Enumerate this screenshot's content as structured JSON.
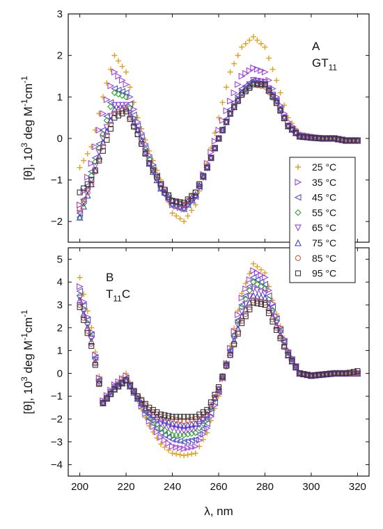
{
  "chart_data": [
    {
      "type": "scatter",
      "panel_label": "A",
      "panel_sublabel": {
        "base": "GT",
        "sub": "11"
      },
      "xlabel": "λ, nm",
      "ylabel": {
        "pre": "[θ], 10",
        "sup1": "3",
        "mid": " deg M",
        "sup2": "-1",
        "mid2": "cm",
        "sup3": "-1"
      },
      "xlim": [
        195,
        325
      ],
      "ylim": [
        -2.5,
        3
      ],
      "xticks": [
        200,
        220,
        240,
        260,
        280,
        300,
        320
      ],
      "yticks": [
        -2,
        -1,
        0,
        1,
        2,
        3
      ],
      "legend_position": "right",
      "series": [
        {
          "name": "25 °C",
          "color": "#e0a020",
          "marker": "plus",
          "x": [
            200,
            205,
            210,
            215,
            220,
            225,
            230,
            235,
            240,
            245,
            250,
            255,
            260,
            265,
            270,
            275,
            280,
            285,
            290,
            295,
            300,
            305,
            310,
            315,
            320
          ],
          "y": [
            -0.7,
            -0.2,
            1.0,
            2.0,
            1.6,
            0.5,
            -0.3,
            -1.0,
            -1.8,
            -2.0,
            -1.6,
            -0.6,
            0.5,
            1.6,
            2.2,
            2.45,
            2.2,
            1.4,
            0.5,
            0.1,
            0.05,
            0.0,
            0.0,
            -0.05,
            -0.05
          ]
        },
        {
          "name": "35 °C",
          "color": "#a040e0",
          "marker": "tri-right",
          "x": [
            200,
            205,
            210,
            215,
            220,
            225,
            230,
            235,
            240,
            245,
            250,
            255,
            260,
            265,
            270,
            275,
            280,
            285,
            290,
            295,
            300,
            305,
            310,
            315,
            320
          ],
          "y": [
            -1.6,
            -0.6,
            0.6,
            1.6,
            1.3,
            0.4,
            -0.4,
            -1.1,
            -1.6,
            -1.7,
            -1.4,
            -0.6,
            0.2,
            0.9,
            1.5,
            1.7,
            1.6,
            1.0,
            0.4,
            0.1,
            0.05,
            0.0,
            0.0,
            -0.05,
            -0.05
          ]
        },
        {
          "name": "45 °C",
          "color": "#5050c8",
          "marker": "tri-left",
          "x": [
            200,
            205,
            210,
            215,
            220,
            225,
            230,
            235,
            240,
            245,
            250,
            255,
            260,
            265,
            270,
            275,
            280,
            285,
            290,
            295,
            300,
            305,
            310,
            315,
            320
          ],
          "y": [
            -1.8,
            -0.8,
            0.2,
            1.2,
            1.1,
            0.3,
            -0.5,
            -1.1,
            -1.6,
            -1.7,
            -1.4,
            -0.7,
            0.0,
            0.7,
            1.2,
            1.4,
            1.3,
            0.9,
            0.3,
            0.05,
            0.02,
            0.0,
            0.0,
            -0.05,
            -0.05
          ]
        },
        {
          "name": "55 °C",
          "color": "#30a030",
          "marker": "diamond",
          "x": [
            200,
            205,
            210,
            215,
            220,
            225,
            230,
            235,
            240,
            245,
            250,
            255,
            260,
            265,
            270,
            275,
            280,
            285,
            290,
            295,
            300,
            305,
            310,
            315,
            320
          ],
          "y": [
            -1.9,
            -0.9,
            0.1,
            1.1,
            1.0,
            0.2,
            -0.5,
            -1.2,
            -1.6,
            -1.7,
            -1.4,
            -0.7,
            0.0,
            0.6,
            1.1,
            1.35,
            1.3,
            0.9,
            0.3,
            0.05,
            0.02,
            0.0,
            0.0,
            -0.05,
            -0.05
          ]
        },
        {
          "name": "65 °C",
          "color": "#9a40d8",
          "marker": "tri-down",
          "x": [
            200,
            205,
            210,
            215,
            220,
            225,
            230,
            235,
            240,
            245,
            250,
            255,
            260,
            265,
            270,
            275,
            280,
            285,
            290,
            295,
            300,
            305,
            310,
            315,
            320
          ],
          "y": [
            -1.8,
            -1.0,
            0.0,
            0.8,
            0.8,
            0.2,
            -0.6,
            -1.2,
            -1.6,
            -1.7,
            -1.4,
            -0.7,
            0.0,
            0.6,
            1.1,
            1.4,
            1.35,
            0.9,
            0.3,
            0.05,
            0.02,
            0.0,
            0.0,
            -0.05,
            -0.05
          ]
        },
        {
          "name": "75 °C",
          "color": "#4040c8",
          "marker": "tri-up",
          "x": [
            200,
            205,
            210,
            215,
            220,
            225,
            230,
            235,
            240,
            245,
            250,
            255,
            260,
            265,
            270,
            275,
            280,
            285,
            290,
            295,
            300,
            305,
            310,
            315,
            320
          ],
          "y": [
            -1.9,
            -1.1,
            -0.1,
            0.7,
            0.75,
            0.2,
            -0.6,
            -1.2,
            -1.5,
            -1.6,
            -1.35,
            -0.7,
            0.0,
            0.6,
            1.1,
            1.35,
            1.3,
            0.9,
            0.3,
            0.05,
            0.02,
            0.0,
            0.0,
            -0.05,
            -0.05
          ]
        },
        {
          "name": "85 °C",
          "color": "#d05838",
          "marker": "circle",
          "x": [
            200,
            205,
            210,
            215,
            220,
            225,
            230,
            235,
            240,
            245,
            250,
            255,
            260,
            265,
            270,
            275,
            280,
            285,
            290,
            295,
            300,
            305,
            310,
            315,
            320
          ],
          "y": [
            -1.7,
            -1.1,
            -0.2,
            0.6,
            0.7,
            0.1,
            -0.6,
            -1.1,
            -1.5,
            -1.6,
            -1.3,
            -0.7,
            0.0,
            0.6,
            1.05,
            1.3,
            1.25,
            0.85,
            0.3,
            0.05,
            0.02,
            0.0,
            0.0,
            -0.05,
            -0.05
          ]
        },
        {
          "name": "95 °C",
          "color": "#333333",
          "marker": "square",
          "x": [
            200,
            205,
            210,
            215,
            220,
            225,
            230,
            235,
            240,
            245,
            250,
            255,
            260,
            265,
            270,
            275,
            280,
            285,
            290,
            295,
            300,
            305,
            310,
            315,
            320
          ],
          "y": [
            -1.3,
            -1.0,
            -0.3,
            0.5,
            0.65,
            0.1,
            -0.6,
            -1.1,
            -1.5,
            -1.55,
            -1.3,
            -0.7,
            0.0,
            0.6,
            1.05,
            1.3,
            1.3,
            0.85,
            0.3,
            0.05,
            0.02,
            0.0,
            0.0,
            -0.05,
            -0.05
          ]
        }
      ]
    },
    {
      "type": "scatter",
      "panel_label": "B",
      "panel_sublabel": {
        "base": "T",
        "sub": "11",
        "post": "C"
      },
      "xlabel": "λ, nm",
      "ylabel": {
        "pre": "[θ], 10",
        "sup1": "3",
        "mid": " deg M",
        "sup2": "-1",
        "mid2": "cm",
        "sup3": "-1"
      },
      "xlim": [
        195,
        325
      ],
      "ylim": [
        -4.5,
        5.5
      ],
      "xticks": [
        200,
        220,
        240,
        260,
        280,
        300,
        320
      ],
      "yticks": [
        -4,
        -3,
        -2,
        -1,
        0,
        1,
        2,
        3,
        4,
        5
      ],
      "series": [
        {
          "name": "25 °C",
          "color": "#e0a020",
          "marker": "plus",
          "x": [
            200,
            205,
            210,
            215,
            220,
            225,
            230,
            235,
            240,
            245,
            250,
            255,
            260,
            265,
            270,
            275,
            280,
            285,
            290,
            295,
            300,
            305,
            310,
            315,
            320
          ],
          "y": [
            4.2,
            2.0,
            -1.2,
            -0.6,
            0.0,
            -1.2,
            -2.3,
            -3.1,
            -3.5,
            -3.6,
            -3.5,
            -2.6,
            -1.0,
            1.2,
            3.5,
            4.8,
            4.4,
            2.6,
            1.0,
            0.0,
            -0.1,
            -0.05,
            0.0,
            0.0,
            0.0
          ]
        },
        {
          "name": "35 °C",
          "color": "#a040e0",
          "marker": "tri-right",
          "x": [
            200,
            205,
            210,
            215,
            220,
            225,
            230,
            235,
            240,
            245,
            250,
            255,
            260,
            265,
            270,
            275,
            280,
            285,
            290,
            295,
            300,
            305,
            310,
            315,
            320
          ],
          "y": [
            3.8,
            1.8,
            -1.2,
            -0.5,
            -0.1,
            -1.1,
            -2.1,
            -2.8,
            -3.2,
            -3.3,
            -3.2,
            -2.4,
            -0.9,
            1.1,
            3.3,
            4.5,
            4.2,
            2.5,
            1.0,
            0.0,
            -0.1,
            -0.05,
            0.0,
            0.0,
            0.0
          ]
        },
        {
          "name": "45 °C",
          "color": "#5050c8",
          "marker": "tri-left",
          "x": [
            200,
            205,
            210,
            215,
            220,
            225,
            230,
            235,
            240,
            245,
            250,
            255,
            260,
            265,
            270,
            275,
            280,
            285,
            290,
            295,
            300,
            305,
            310,
            315,
            320
          ],
          "y": [
            3.6,
            1.7,
            -1.3,
            -0.6,
            -0.2,
            -1.1,
            -2.0,
            -2.6,
            -2.9,
            -3.0,
            -2.9,
            -2.2,
            -0.8,
            1.0,
            3.0,
            4.2,
            3.9,
            2.4,
            0.9,
            0.0,
            -0.1,
            -0.05,
            0.0,
            0.0,
            0.0
          ]
        },
        {
          "name": "55 °C",
          "color": "#30a030",
          "marker": "diamond",
          "x": [
            200,
            205,
            210,
            215,
            220,
            225,
            230,
            235,
            240,
            245,
            250,
            255,
            260,
            265,
            270,
            275,
            280,
            285,
            290,
            295,
            300,
            305,
            310,
            315,
            320
          ],
          "y": [
            3.4,
            1.6,
            -1.3,
            -0.6,
            -0.3,
            -1.1,
            -1.9,
            -2.4,
            -2.7,
            -2.7,
            -2.6,
            -2.0,
            -0.7,
            1.0,
            2.9,
            4.0,
            3.7,
            2.3,
            0.9,
            0.0,
            -0.1,
            -0.05,
            0.0,
            0.0,
            0.0
          ]
        },
        {
          "name": "65 °C",
          "color": "#9a40d8",
          "marker": "tri-down",
          "x": [
            200,
            205,
            210,
            215,
            220,
            225,
            230,
            235,
            240,
            245,
            250,
            255,
            260,
            265,
            270,
            275,
            280,
            285,
            290,
            295,
            300,
            305,
            310,
            315,
            320
          ],
          "y": [
            3.3,
            1.5,
            -1.3,
            -0.6,
            -0.3,
            -1.1,
            -1.8,
            -2.2,
            -2.4,
            -2.5,
            -2.4,
            -1.9,
            -0.7,
            0.9,
            2.7,
            3.7,
            3.5,
            2.2,
            0.9,
            0.0,
            -0.1,
            -0.05,
            0.0,
            0.0,
            0.0
          ]
        },
        {
          "name": "75 °C",
          "color": "#4040c8",
          "marker": "tri-up",
          "x": [
            200,
            205,
            210,
            215,
            220,
            225,
            230,
            235,
            240,
            245,
            250,
            255,
            260,
            265,
            270,
            275,
            280,
            285,
            290,
            295,
            300,
            305,
            310,
            315,
            320
          ],
          "y": [
            3.2,
            1.4,
            -1.3,
            -0.7,
            -0.3,
            -1.1,
            -1.7,
            -2.0,
            -2.2,
            -2.3,
            -2.2,
            -1.8,
            -0.7,
            0.9,
            2.5,
            3.4,
            3.3,
            2.1,
            0.8,
            0.0,
            -0.1,
            -0.05,
            0.0,
            0.0,
            0.0
          ]
        },
        {
          "name": "85 °C",
          "color": "#d05838",
          "marker": "circle",
          "x": [
            200,
            205,
            210,
            215,
            220,
            225,
            230,
            235,
            240,
            245,
            250,
            255,
            260,
            265,
            270,
            275,
            280,
            285,
            290,
            295,
            300,
            305,
            310,
            315,
            320
          ],
          "y": [
            3.0,
            1.3,
            -1.3,
            -0.7,
            -0.3,
            -1.0,
            -1.6,
            -1.9,
            -2.0,
            -2.1,
            -2.0,
            -1.7,
            -0.7,
            0.8,
            2.3,
            3.2,
            3.1,
            2.0,
            0.8,
            0.0,
            -0.1,
            -0.05,
            0.0,
            0.0,
            0.0
          ]
        },
        {
          "name": "95 °C",
          "color": "#333333",
          "marker": "square",
          "x": [
            200,
            205,
            210,
            215,
            220,
            225,
            230,
            235,
            240,
            245,
            250,
            255,
            260,
            265,
            270,
            275,
            280,
            285,
            290,
            295,
            300,
            305,
            310,
            315,
            320
          ],
          "y": [
            2.9,
            1.2,
            -1.3,
            -0.7,
            -0.3,
            -1.0,
            -1.5,
            -1.8,
            -1.9,
            -1.9,
            -1.9,
            -1.6,
            -0.6,
            0.8,
            2.2,
            3.1,
            3.0,
            1.9,
            0.8,
            0.0,
            -0.1,
            -0.05,
            0.0,
            0.0,
            0.1
          ]
        }
      ]
    }
  ]
}
